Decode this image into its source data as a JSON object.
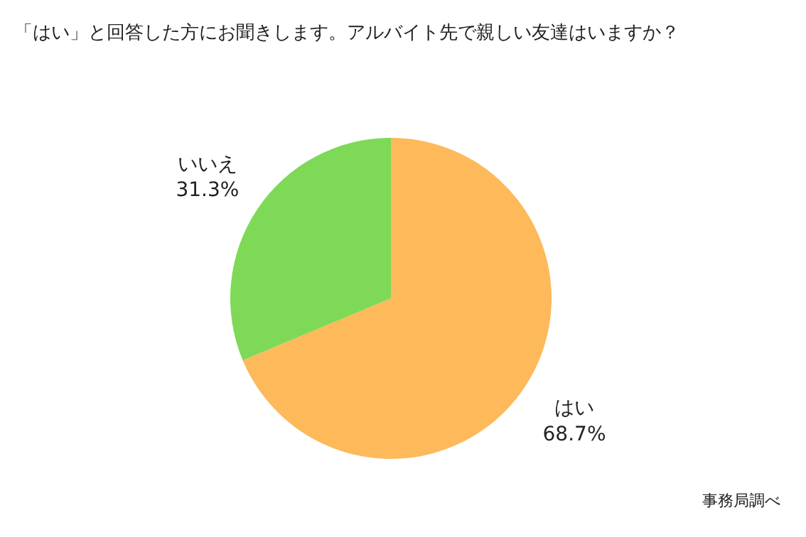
{
  "chart_data": {
    "type": "pie",
    "title": "「はい」と回答した方にお聞きします。アルバイト先で親しい友達はいますか？",
    "categories": [
      "はい",
      "いいえ"
    ],
    "values": [
      68.7,
      31.3
    ],
    "colors": [
      "#fdb95a",
      "#7ed957"
    ],
    "value_labels": [
      "68.7%",
      "31.3%"
    ],
    "annotations": [
      "事務局調べ"
    ],
    "legend": false
  }
}
